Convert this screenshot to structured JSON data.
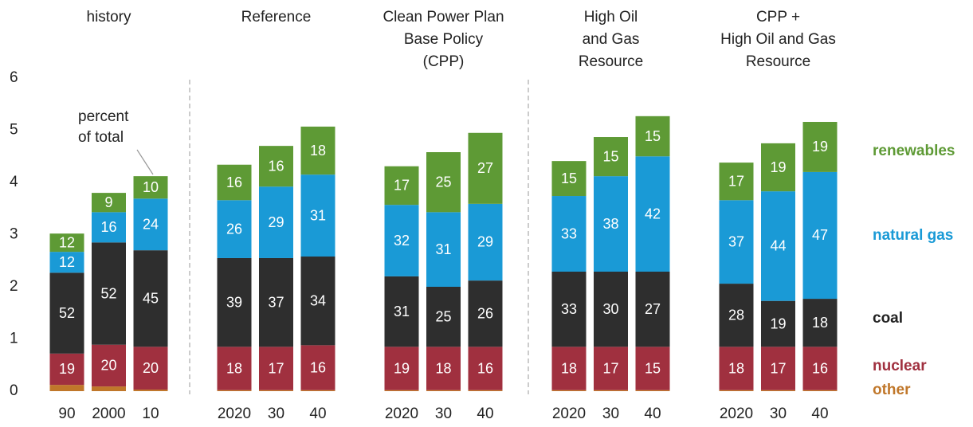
{
  "chart_data": {
    "type": "stacked-bar",
    "groups": [
      {
        "name": [
          "history"
        ]
      },
      {
        "name": [
          "Reference"
        ]
      },
      {
        "name": [
          "Clean Power Plan",
          "Base Policy",
          "(CPP)"
        ]
      },
      {
        "name": [
          "High Oil",
          "and Gas",
          "Resource"
        ]
      },
      {
        "name": [
          "CPP +",
          "High Oil and Gas",
          "Resource"
        ]
      }
    ],
    "categories": [
      "90",
      "2000",
      "10",
      "2020",
      "30",
      "40",
      "2020",
      "30",
      "40",
      "2020",
      "30",
      "40",
      "2020",
      "30",
      "40"
    ],
    "annotation": [
      "percent",
      "of total"
    ],
    "series": [
      {
        "name": "other",
        "color": "#c0772a",
        "values": [
          0.12,
          0.09,
          0.03,
          0.02,
          0.02,
          0.02,
          0.02,
          0.02,
          0.02,
          0.02,
          0.02,
          0.02,
          0.02,
          0.02,
          0.02
        ]
      },
      {
        "name": "nuclear",
        "color": "#a0303f",
        "values": [
          0.6,
          0.8,
          0.82,
          0.83,
          0.83,
          0.86,
          0.83,
          0.83,
          0.83,
          0.83,
          0.83,
          0.83,
          0.83,
          0.83,
          0.83
        ],
        "percents": [
          19,
          20,
          20,
          18,
          17,
          16,
          19,
          18,
          16,
          18,
          17,
          15,
          18,
          17,
          16
        ]
      },
      {
        "name": "coal",
        "color": "#2e2e2e",
        "values": [
          1.55,
          1.96,
          1.85,
          1.7,
          1.7,
          1.7,
          1.35,
          1.15,
          1.27,
          1.44,
          1.44,
          1.44,
          1.21,
          0.88,
          0.92
        ],
        "percents": [
          52,
          52,
          45,
          39,
          37,
          34,
          31,
          25,
          26,
          33,
          30,
          27,
          28,
          19,
          18
        ]
      },
      {
        "name": "natural gas",
        "color": "#1a9ad6",
        "values": [
          0.4,
          0.58,
          0.99,
          1.11,
          1.37,
          1.57,
          1.37,
          1.43,
          1.47,
          1.45,
          1.83,
          2.21,
          1.6,
          2.1,
          2.43
        ],
        "percents": [
          12,
          16,
          24,
          26,
          29,
          31,
          32,
          31,
          29,
          33,
          38,
          42,
          37,
          44,
          47
        ]
      },
      {
        "name": "renewables",
        "color": "#5e9a35",
        "values": [
          0.35,
          0.37,
          0.43,
          0.68,
          0.78,
          0.92,
          0.74,
          1.15,
          1.36,
          0.67,
          0.75,
          0.77,
          0.72,
          0.92,
          0.96
        ],
        "percents": [
          12,
          9,
          10,
          16,
          16,
          18,
          17,
          25,
          27,
          15,
          15,
          15,
          17,
          19,
          19
        ]
      }
    ],
    "ylim": [
      0,
      6
    ],
    "yticks": [
      0,
      1,
      2,
      3,
      4,
      5,
      6
    ]
  }
}
